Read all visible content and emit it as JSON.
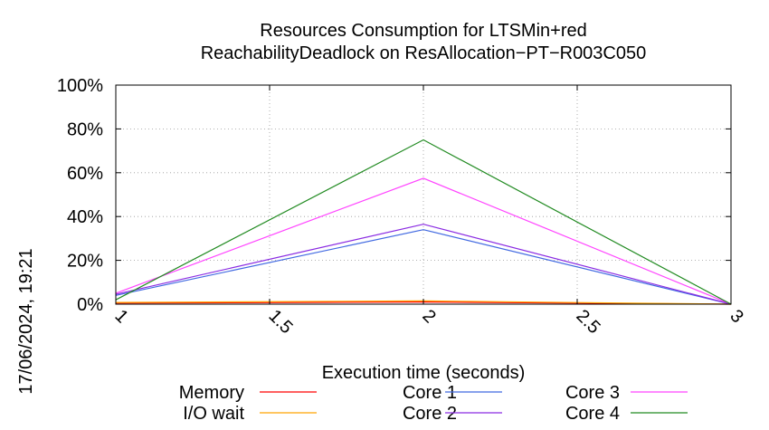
{
  "timestamp": "17/06/2024, 19:21",
  "chart_data": {
    "type": "line",
    "title": "Resources Consumption for LTSMin+red",
    "subtitle": "ReachabilityDeadlock on ResAllocation−PT−R003C050",
    "xlabel": "Execution time (seconds)",
    "ylabel": "",
    "xlim": [
      1,
      3
    ],
    "ylim": [
      0,
      100
    ],
    "x_ticks": [
      1,
      1.5,
      2,
      2.5,
      3
    ],
    "x_tick_labels": [
      "1",
      "1.5",
      "2",
      "2.5",
      "3"
    ],
    "y_ticks": [
      0,
      20,
      40,
      60,
      80,
      100
    ],
    "y_tick_labels": [
      "0%",
      "20%",
      "40%",
      "60%",
      "80%",
      "100%"
    ],
    "grid": true,
    "legend_position": "bottom",
    "x": [
      1,
      2,
      3
    ],
    "series": [
      {
        "name": "Memory",
        "color": "#ff0000",
        "values": [
          0.5,
          1.0,
          0
        ]
      },
      {
        "name": "I/O wait",
        "color": "#ffa500",
        "values": [
          0.8,
          1.5,
          0
        ]
      },
      {
        "name": "Core 1",
        "color": "#4169e1",
        "values": [
          4,
          34,
          0
        ]
      },
      {
        "name": "Core 2",
        "color": "#8a2be2",
        "values": [
          4.5,
          36.5,
          0
        ]
      },
      {
        "name": "Core 3",
        "color": "#ff44ff",
        "values": [
          5,
          57.5,
          0
        ]
      },
      {
        "name": "Core 4",
        "color": "#228b22",
        "values": [
          2,
          75,
          0
        ]
      }
    ]
  }
}
